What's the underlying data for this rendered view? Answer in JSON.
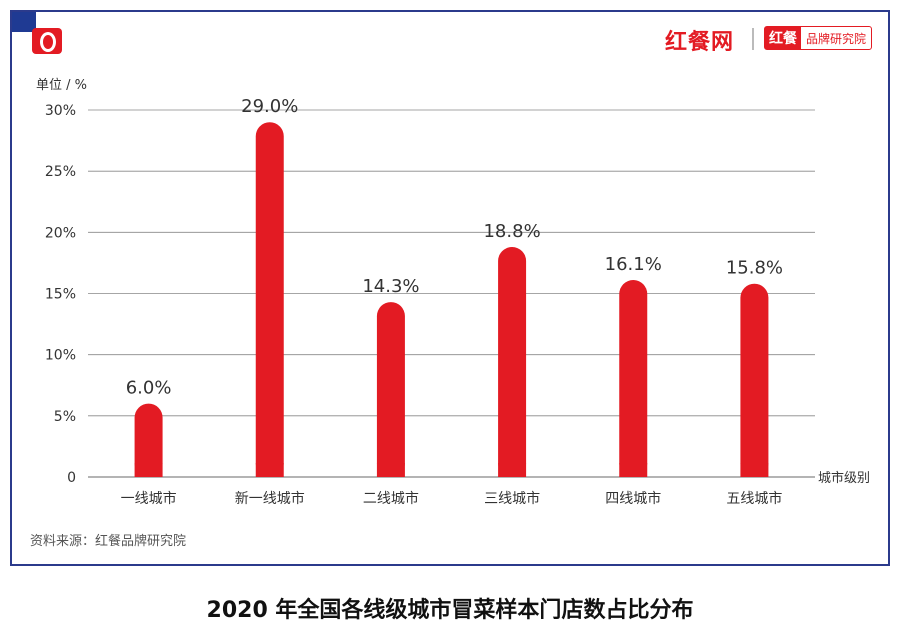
{
  "brand": {
    "name": "红餐网",
    "tag": "红餐",
    "institute": "品牌研究院",
    "watermark": "红餐 品牌研究院"
  },
  "unit_label": "单位 / %",
  "source": "资料来源：红餐品牌研究院",
  "caption": "2020 年全国各线级城市冒菜样本门店数占比分布",
  "colors": {
    "bar": "#e31b23",
    "frame": "#2b3a8c",
    "grid": "#888888"
  },
  "chart_data": {
    "type": "bar",
    "title": "2020 年全国各线级城市冒菜样本门店数占比分布",
    "categories": [
      "一线城市",
      "新一线城市",
      "二线城市",
      "三线城市",
      "四线城市",
      "五线城市"
    ],
    "values": [
      6.0,
      29.0,
      14.3,
      18.8,
      16.1,
      15.8
    ],
    "value_labels": [
      "6.0%",
      "29.0%",
      "14.3%",
      "18.8%",
      "16.1%",
      "15.8%"
    ],
    "xlabel": "城市级别",
    "ylabel": "单位 / %",
    "ylim": [
      0,
      30
    ],
    "yticks": [
      0,
      5,
      10,
      15,
      20,
      25,
      30
    ],
    "ytick_labels": [
      "0",
      "5%",
      "10%",
      "15%",
      "20%",
      "25%",
      "30%"
    ],
    "grid": true
  }
}
